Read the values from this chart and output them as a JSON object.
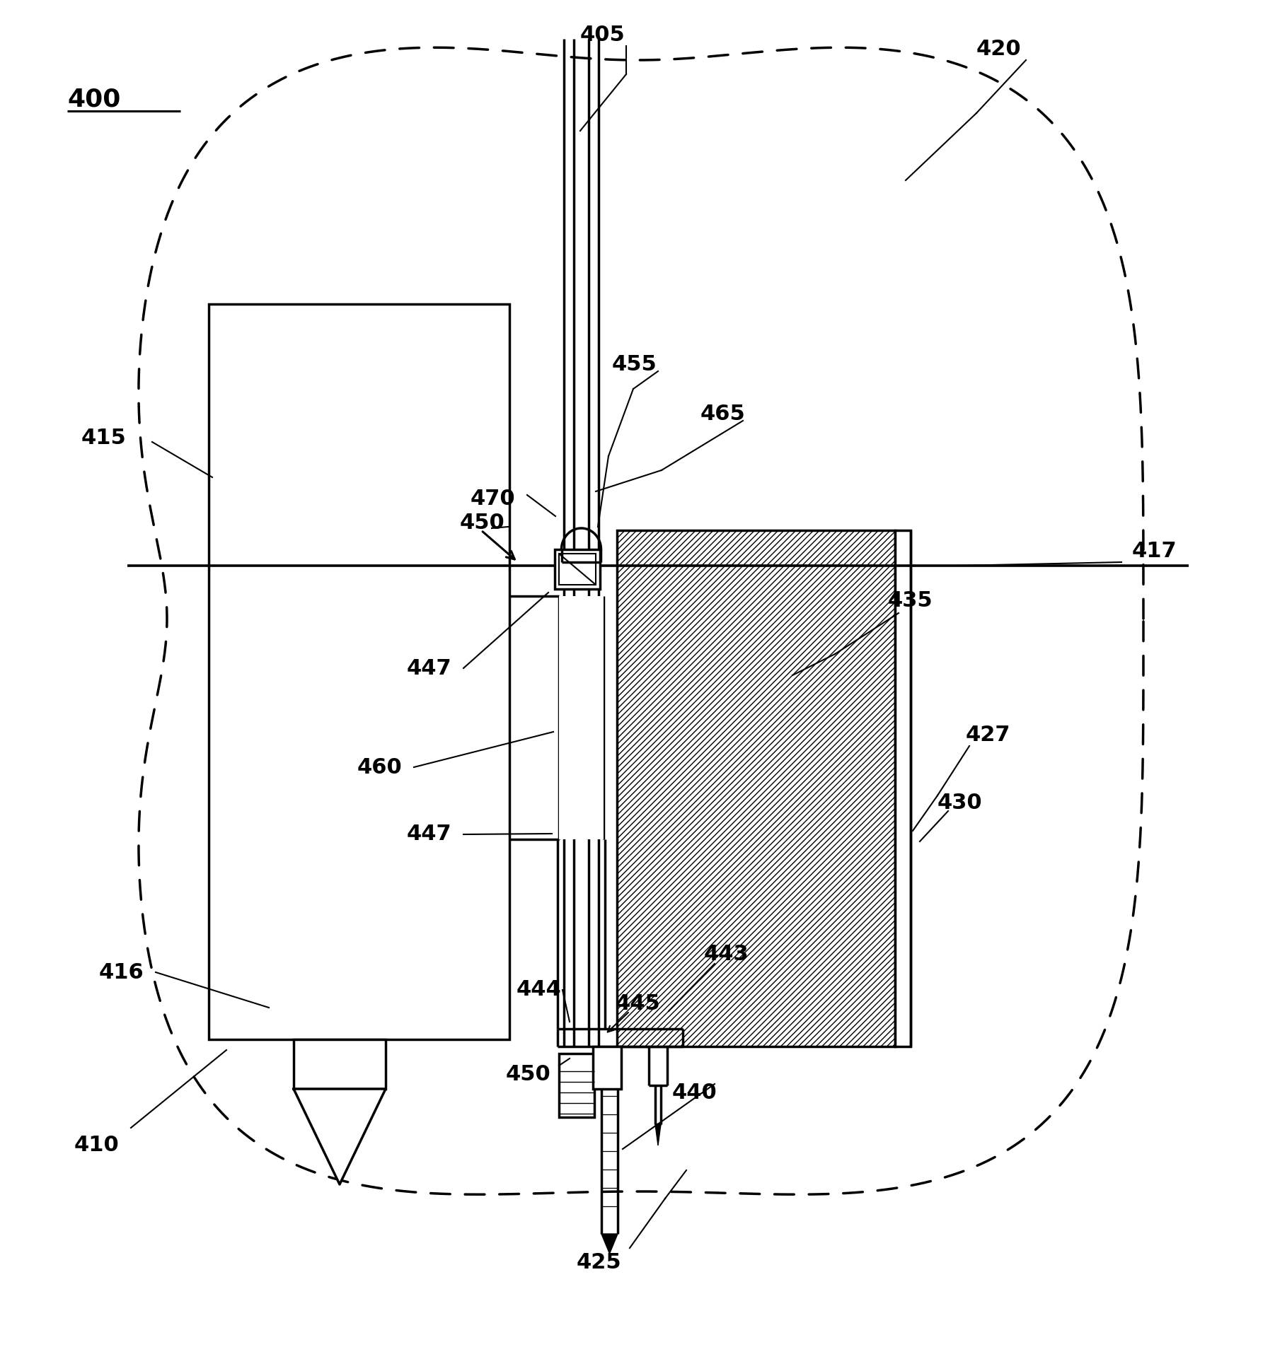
{
  "bg_color": "#ffffff",
  "lc": "#000000",
  "lw": 2.5,
  "lw_thin": 1.5,
  "fs": 22,
  "fig_w": 18.02,
  "fig_h": 19.05,
  "dpi": 100
}
